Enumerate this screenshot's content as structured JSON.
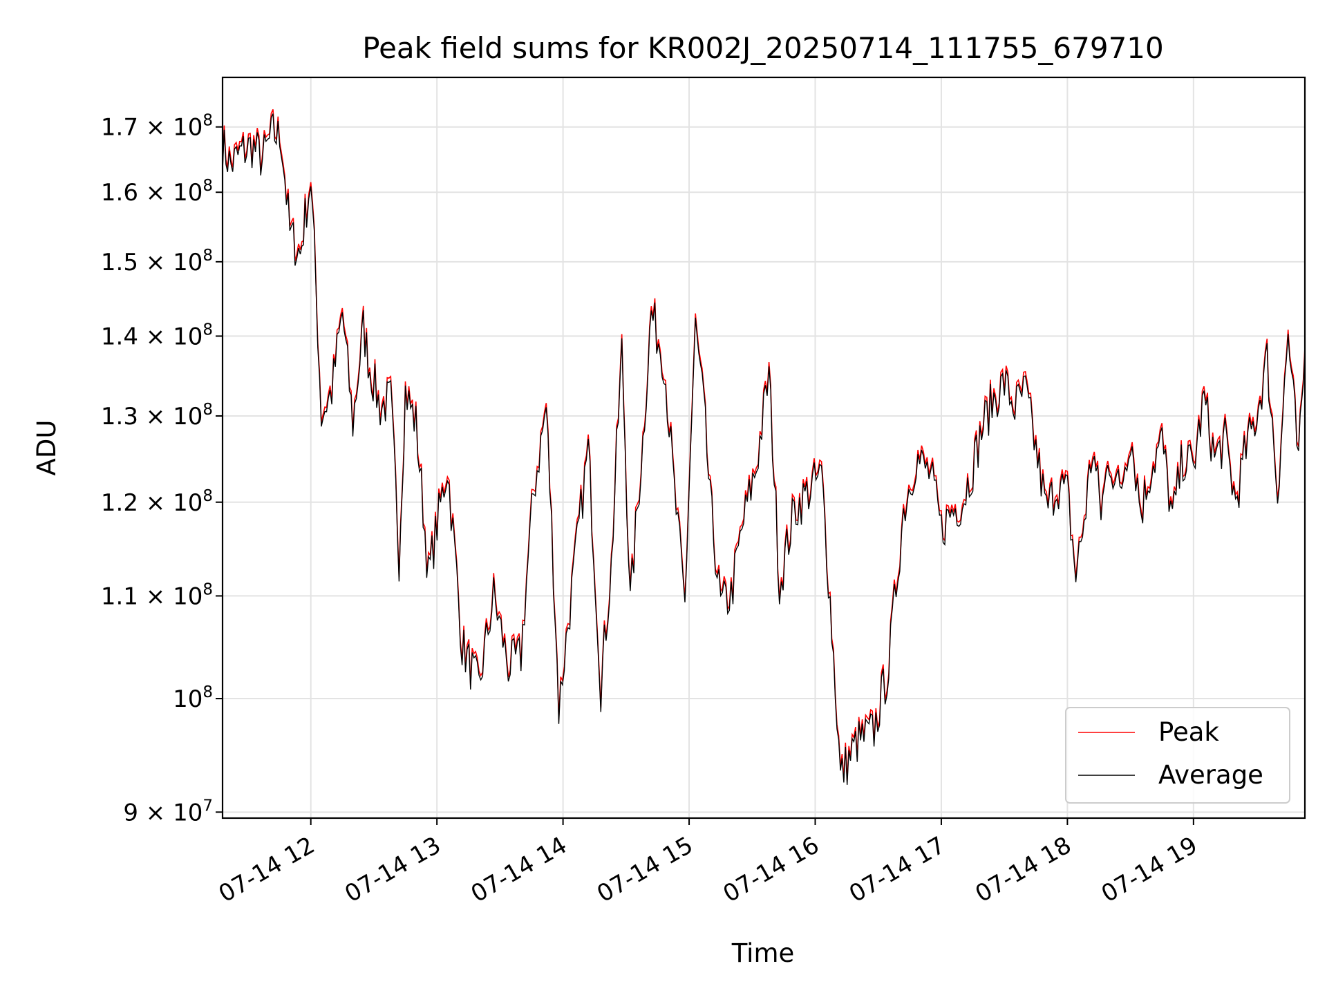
{
  "chart_data": {
    "type": "line",
    "title": "Peak field sums for KR002J_20250714_111755_679710",
    "xlabel": "Time",
    "ylabel": "ADU",
    "y_scale": "log",
    "ylim": [
      89500000,
      178000000
    ],
    "xlim": [
      "2025-07-14 11:18",
      "2025-07-14 19:53"
    ],
    "grid": true,
    "legend_position": "lower right",
    "x_ticks": [
      {
        "value": "2025-07-14 12:00",
        "label": "07-14 12"
      },
      {
        "value": "2025-07-14 13:00",
        "label": "07-14 13"
      },
      {
        "value": "2025-07-14 14:00",
        "label": "07-14 14"
      },
      {
        "value": "2025-07-14 15:00",
        "label": "07-14 15"
      },
      {
        "value": "2025-07-14 16:00",
        "label": "07-14 16"
      },
      {
        "value": "2025-07-14 17:00",
        "label": "07-14 17"
      },
      {
        "value": "2025-07-14 18:00",
        "label": "07-14 18"
      },
      {
        "value": "2025-07-14 19:00",
        "label": "07-14 19"
      }
    ],
    "y_ticks": [
      {
        "value": 90000000,
        "mantissa": "9",
        "exp": "7"
      },
      {
        "value": 100000000,
        "mantissa": "",
        "exp": "8"
      },
      {
        "value": 110000000,
        "mantissa": "1.1",
        "exp": "8"
      },
      {
        "value": 120000000,
        "mantissa": "1.2",
        "exp": "8"
      },
      {
        "value": 130000000,
        "mantissa": "1.3",
        "exp": "8"
      },
      {
        "value": 140000000,
        "mantissa": "1.4",
        "exp": "8"
      },
      {
        "value": 150000000,
        "mantissa": "1.5",
        "exp": "8"
      },
      {
        "value": 160000000,
        "mantissa": "1.6",
        "exp": "8"
      },
      {
        "value": 170000000,
        "mantissa": "1.7",
        "exp": "8"
      }
    ],
    "series": [
      {
        "name": "Peak",
        "color": "#ff0000",
        "x": [
          "2025-07-14 11:18",
          "2025-07-14 11:22",
          "2025-07-14 11:27",
          "2025-07-14 11:32",
          "2025-07-14 11:37",
          "2025-07-14 11:42",
          "2025-07-14 11:46",
          "2025-07-14 11:50",
          "2025-07-14 11:55",
          "2025-07-14 11:58",
          "2025-07-14 12:00",
          "2025-07-14 12:05",
          "2025-07-14 12:10",
          "2025-07-14 12:15",
          "2025-07-14 12:20",
          "2025-07-14 12:25",
          "2025-07-14 12:28",
          "2025-07-14 12:33",
          "2025-07-14 12:38",
          "2025-07-14 12:42",
          "2025-07-14 12:45",
          "2025-07-14 12:50",
          "2025-07-14 12:56",
          "2025-07-14 13:05",
          "2025-07-14 13:12",
          "2025-07-14 13:20",
          "2025-07-14 13:27",
          "2025-07-14 13:34",
          "2025-07-14 13:40",
          "2025-07-14 13:46",
          "2025-07-14 13:52",
          "2025-07-14 13:58",
          "2025-07-14 14:05",
          "2025-07-14 14:12",
          "2025-07-14 14:18",
          "2025-07-14 14:23",
          "2025-07-14 14:28",
          "2025-07-14 14:32",
          "2025-07-14 14:38",
          "2025-07-14 14:42",
          "2025-07-14 14:48",
          "2025-07-14 14:53",
          "2025-07-14 14:58",
          "2025-07-14 15:03",
          "2025-07-14 15:07",
          "2025-07-14 15:10",
          "2025-07-14 15:15",
          "2025-07-14 15:20",
          "2025-07-14 15:26",
          "2025-07-14 15:32",
          "2025-07-14 15:38",
          "2025-07-14 15:43",
          "2025-07-14 15:50",
          "2025-07-14 15:56",
          "2025-07-14 16:03",
          "2025-07-14 16:12",
          "2025-07-14 16:20",
          "2025-07-14 16:28",
          "2025-07-14 16:35",
          "2025-07-14 16:42",
          "2025-07-14 16:48",
          "2025-07-14 16:55",
          "2025-07-14 17:00",
          "2025-07-14 17:05",
          "2025-07-14 17:10",
          "2025-07-14 17:15",
          "2025-07-14 17:20",
          "2025-07-14 17:25",
          "2025-07-14 17:30",
          "2025-07-14 17:35",
          "2025-07-14 17:40",
          "2025-07-14 17:45",
          "2025-07-14 17:50",
          "2025-07-14 17:55",
          "2025-07-14 18:00",
          "2025-07-14 18:04",
          "2025-07-14 18:08",
          "2025-07-14 18:12",
          "2025-07-14 18:16",
          "2025-07-14 18:20",
          "2025-07-14 18:25",
          "2025-07-14 18:30",
          "2025-07-14 18:35",
          "2025-07-14 18:40",
          "2025-07-14 18:45",
          "2025-07-14 18:50",
          "2025-07-14 18:55",
          "2025-07-14 19:00",
          "2025-07-14 19:05",
          "2025-07-14 19:10",
          "2025-07-14 19:15",
          "2025-07-14 19:20",
          "2025-07-14 19:25",
          "2025-07-14 19:30",
          "2025-07-14 19:35",
          "2025-07-14 19:40",
          "2025-07-14 19:45",
          "2025-07-14 19:50",
          "2025-07-14 19:53"
        ],
        "values": [
          167000000,
          164000000,
          166000000,
          167000000,
          165000000,
          169000000,
          168000000,
          154000000,
          151000000,
          158000000,
          162000000,
          130000000,
          133000000,
          143000000,
          129000000,
          141000000,
          136000000,
          131000000,
          132000000,
          114000000,
          133000000,
          129000000,
          112000000,
          124000000,
          105000000,
          101000000,
          110000000,
          103000000,
          104000000,
          121000000,
          131000000,
          99000000,
          112000000,
          126000000,
          101000000,
          113000000,
          138000000,
          109000000,
          127000000,
          143000000,
          137000000,
          121000000,
          109000000,
          141000000,
          131000000,
          120000000,
          109000000,
          110000000,
          118000000,
          124000000,
          135000000,
          111000000,
          119000000,
          121000000,
          123000000,
          93000000,
          96000000,
          97000000,
          103000000,
          119000000,
          125000000,
          123000000,
          117000000,
          119000000,
          120000000,
          124000000,
          129000000,
          132000000,
          134000000,
          131000000,
          133000000,
          126000000,
          119000000,
          122000000,
          121000000,
          112000000,
          118000000,
          126000000,
          119000000,
          125000000,
          121000000,
          128000000,
          119000000,
          124000000,
          127000000,
          118000000,
          125000000,
          124000000,
          132000000,
          125000000,
          127000000,
          120000000,
          126000000,
          130000000,
          137000000,
          121000000,
          140000000,
          124000000,
          138000000
        ],
        "note_unused": ""
      },
      {
        "name": "Average",
        "color": "#000000"
      }
    ]
  }
}
